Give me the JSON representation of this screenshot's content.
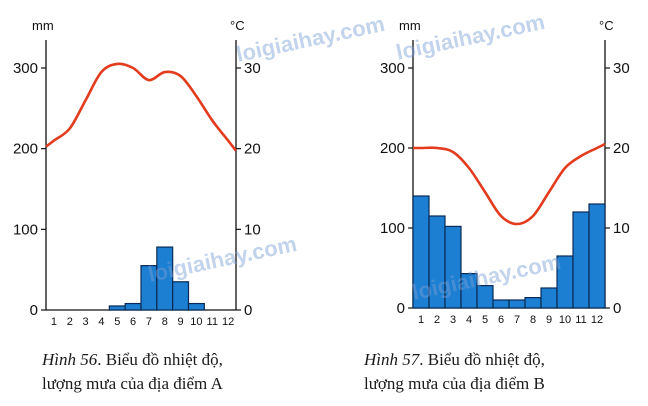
{
  "watermarks": [
    "loigiaihay.com",
    "loigiaihay.com",
    "loigiaihay.com",
    "loigiaihay.com"
  ],
  "chart_data": [
    {
      "type": "bar+line",
      "name": "A",
      "left_unit": "mm",
      "right_unit": "°C",
      "rain_ticks": [
        "0",
        "100",
        "200",
        "300"
      ],
      "temp_ticks": [
        "0",
        "10",
        "20",
        "30"
      ],
      "rain_range": [
        0,
        300
      ],
      "temp_range": [
        0,
        30
      ],
      "months": [
        "1",
        "2",
        "3",
        "4",
        "5",
        "6",
        "7",
        "8",
        "9",
        "10",
        "11",
        "12"
      ],
      "rainfall_mm": [
        0,
        0,
        0,
        0,
        5,
        8,
        55,
        78,
        35,
        8,
        0,
        0
      ],
      "temperature_c": [
        21,
        22.5,
        26,
        29.5,
        30.5,
        30,
        28.5,
        29.5,
        29,
        26.5,
        23.5,
        21
      ],
      "caption_fig": "Hình 56",
      "caption_line1": ". Biểu đồ nhiệt độ,",
      "caption_line2": "lượng mưa của địa điểm A"
    },
    {
      "type": "bar+line",
      "name": "B",
      "left_unit": "mm",
      "right_unit": "°C",
      "rain_ticks": [
        "0",
        "100",
        "200",
        "300"
      ],
      "temp_ticks": [
        "0",
        "10",
        "20",
        "30"
      ],
      "rain_range": [
        0,
        300
      ],
      "temp_range": [
        0,
        30
      ],
      "months": [
        "1",
        "2",
        "3",
        "4",
        "5",
        "6",
        "7",
        "8",
        "9",
        "10",
        "11",
        "12"
      ],
      "rainfall_mm": [
        140,
        115,
        102,
        43,
        28,
        10,
        10,
        13,
        25,
        65,
        120,
        130
      ],
      "temperature_c": [
        20,
        20,
        19.5,
        17.5,
        14.5,
        11.5,
        10.5,
        11.5,
        14.5,
        17.5,
        19,
        20
      ],
      "caption_fig": "Hình 57",
      "caption_line1": ". Biểu đồ nhiệt độ,",
      "caption_line2": "lượng mưa của địa điểm B"
    }
  ]
}
